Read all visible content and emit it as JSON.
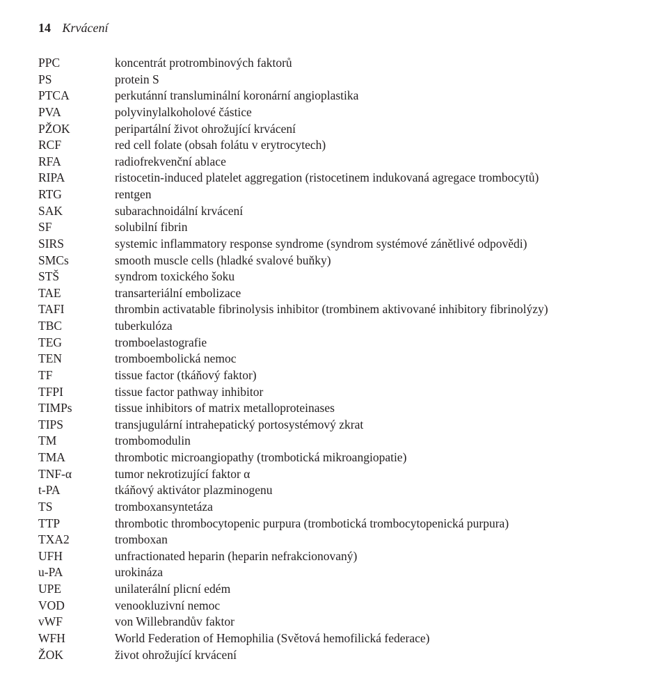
{
  "header": {
    "page_number": "14",
    "section_title": "Krvácení"
  },
  "glossary": [
    {
      "abbr": "PPC",
      "def": "koncentrát protrombinových faktorů"
    },
    {
      "abbr": "PS",
      "def": "protein S"
    },
    {
      "abbr": "PTCA",
      "def": "perkutánní transluminální koronární angioplastika"
    },
    {
      "abbr": "PVA",
      "def": "polyvinylalkoholové částice"
    },
    {
      "abbr": "PŽOK",
      "def": "peripartální život ohrožující krvácení"
    },
    {
      "abbr": "RCF",
      "def": "red cell folate (obsah folátu v erytrocytech)"
    },
    {
      "abbr": "RFA",
      "def": "radiofrekvenční ablace"
    },
    {
      "abbr": "RIPA",
      "def": "ristocetin-induced platelet aggregation (ristocetinem indukovaná agregace trombocytů)"
    },
    {
      "abbr": "RTG",
      "def": "rentgen"
    },
    {
      "abbr": "SAK",
      "def": "subarachnoidální krvácení"
    },
    {
      "abbr": "SF",
      "def": "solubilní fibrin"
    },
    {
      "abbr": "SIRS",
      "def": "systemic inflammatory response syndrome (syndrom systémové zánětlivé odpovědi)"
    },
    {
      "abbr": "SMCs",
      "def": "smooth muscle cells (hladké svalové buňky)"
    },
    {
      "abbr": "STŠ",
      "def": "syndrom toxického šoku"
    },
    {
      "abbr": "TAE",
      "def": "transarteriální embolizace"
    },
    {
      "abbr": "TAFI",
      "def": "thrombin activatable fibrinolysis inhibitor (trombinem aktivované inhibitory fibrinolýzy)"
    },
    {
      "abbr": "TBC",
      "def": "tuberkulóza"
    },
    {
      "abbr": "TEG",
      "def": "tromboelastografie"
    },
    {
      "abbr": "TEN",
      "def": "tromboembolická nemoc"
    },
    {
      "abbr": "TF",
      "def": "tissue factor (tkáňový faktor)"
    },
    {
      "abbr": "TFPI",
      "def": "tissue factor pathway inhibitor"
    },
    {
      "abbr": "TIMPs",
      "def": "tissue inhibitors of matrix metalloproteinases"
    },
    {
      "abbr": "TIPS",
      "def": "transjugulární intrahepatický portosystémový zkrat"
    },
    {
      "abbr": "TM",
      "def": "trombomodulin"
    },
    {
      "abbr": "TMA",
      "def": "thrombotic microangiopathy (trombotická mikroangiopatie)"
    },
    {
      "abbr": "TNF-α",
      "def": "tumor nekrotizující faktor α"
    },
    {
      "abbr": "t-PA",
      "def": "tkáňový aktivátor plazminogenu"
    },
    {
      "abbr": "TS",
      "def": "tromboxansyntetáza"
    },
    {
      "abbr": "TTP",
      "def": "thrombotic thrombocytopenic purpura (trombotická trombocytopenická purpura)"
    },
    {
      "abbr": "TXA2",
      "def": "tromboxan"
    },
    {
      "abbr": "UFH",
      "def": "unfractionated heparin (heparin nefrakcionovaný)"
    },
    {
      "abbr": "u-PA",
      "def": "urokináza"
    },
    {
      "abbr": "UPE",
      "def": "unilaterální plicní edém"
    },
    {
      "abbr": "VOD",
      "def": "venookluzivní nemoc"
    },
    {
      "abbr": "vWF",
      "def": "von Willebrandův faktor"
    },
    {
      "abbr": "WFH",
      "def": "World Federation of Hemophilia (Světová hemofilická federace)"
    },
    {
      "abbr": "ŽOK",
      "def": "život ohrožující krvácení"
    }
  ]
}
